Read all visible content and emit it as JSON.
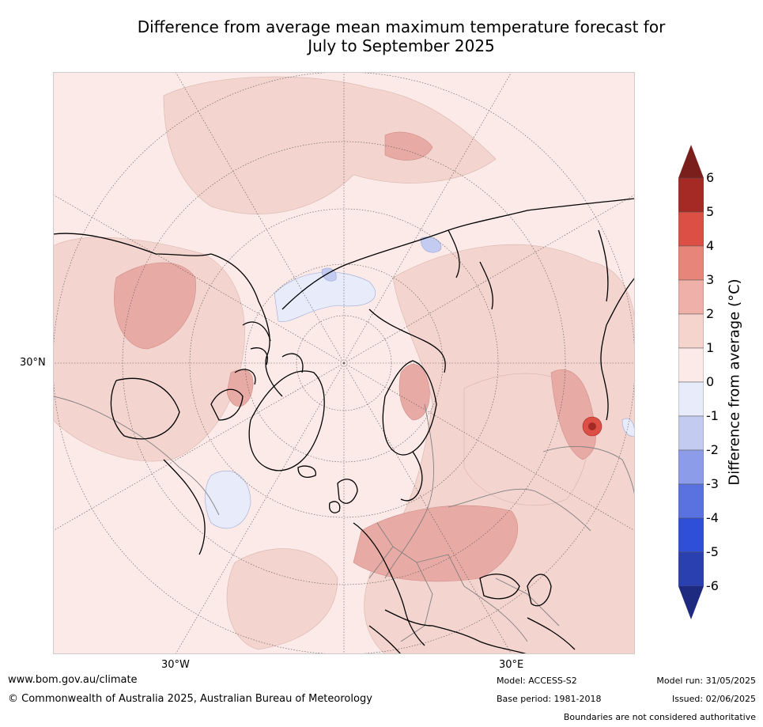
{
  "title_line1": "Difference from average mean maximum temperature forecast for",
  "title_line2": "July to September 2025",
  "map": {
    "graticule_labels": {
      "lat_left": "30°N",
      "lon_bottom_left": "30°W",
      "lon_bottom_right": "30°E"
    },
    "fill_colors": {
      "warm_0_1": "#fbeae7",
      "warm_1_2": "#f3d4cf",
      "warm_2_3": "#e8aaa4",
      "cool_0_1": "#e8ecfa",
      "cool_1_2": "#c3ccf0"
    },
    "coastline_color": "#000000",
    "border_color": "#808080"
  },
  "colorbar": {
    "label": "Difference from average (°C)",
    "ticks": [
      "6",
      "5",
      "4",
      "3",
      "2",
      "1",
      "0",
      "-1",
      "-2",
      "-3",
      "-4",
      "-5",
      "-6"
    ],
    "colors": [
      "#a52a25",
      "#dc4f44",
      "#e8857a",
      "#eeb0a8",
      "#f5d4ce",
      "#fbeae7",
      "#e8ecfa",
      "#c3ccf0",
      "#8c9ce8",
      "#5a71e0",
      "#2f4fd8",
      "#2a3fb0"
    ],
    "top_arrow_color": "#7a1f1c",
    "bottom_arrow_color": "#1e2a80"
  },
  "footer": {
    "url": "www.bom.gov.au/climate",
    "copyright": "© Commonwealth of Australia 2025, Australian Bureau of Meteorology",
    "model": "Model: ACCESS-S2",
    "base_period": "Base period: 1981-2018",
    "model_run": "Model run: 31/05/2025",
    "issued": "Issued: 02/06/2025",
    "disclaimer": "Boundaries are not considered authoritative"
  }
}
